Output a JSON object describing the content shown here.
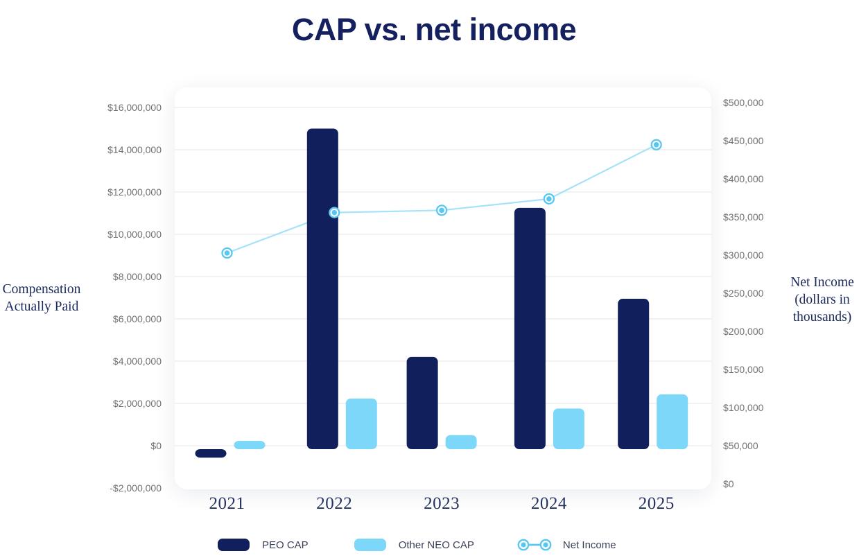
{
  "title": "CAP vs. net income",
  "left_axis_title": {
    "line1": "Compensation",
    "line2": "Actually Paid"
  },
  "right_axis_title": {
    "line1": "Net Income",
    "line2": "(dollars in",
    "line3": "thousands)"
  },
  "legend": {
    "peo_cap": "PEO CAP",
    "other_neo_cap": "Other NEO CAP",
    "net_income": "Net Income"
  },
  "colors": {
    "navy": "#111f5c",
    "light_blue": "#7cd7f9",
    "line_blue": "#a6e2fa",
    "marker_blue": "#58c8f2",
    "gridline": "#e9e9e9",
    "tick_text": "#6e7072",
    "title_navy": "#15205f",
    "serif_navy": "#1b2a5c",
    "year_navy": "#24325f",
    "legend_text": "#3b4159"
  },
  "chart_data": {
    "type": "bar",
    "title": "CAP vs. net income",
    "categories": [
      "2021",
      "2022",
      "2023",
      "2024",
      "2025"
    ],
    "series": [
      {
        "name": "PEO CAP",
        "type": "bar",
        "axis": "left",
        "values": [
          -400000,
          15000000,
          4200000,
          11250000,
          6950000
        ]
      },
      {
        "name": "Other NEO CAP",
        "type": "bar",
        "axis": "left",
        "values": [
          230000,
          2230000,
          500000,
          1760000,
          2430000
        ]
      },
      {
        "name": "Net Income",
        "type": "line",
        "axis": "right",
        "values": [
          303000,
          356000,
          359000,
          374000,
          445000
        ]
      }
    ],
    "left_axis": {
      "label": "Compensation Actually Paid",
      "min": -2000000,
      "max": 16000000,
      "step": 2000000,
      "tick_labels": [
        "$16,000,000",
        "$14,000,000",
        "$12,000,000",
        "$10,000,000",
        "$8,000,000",
        "$6,000,000",
        "$4,000,000",
        "$2,000,000",
        "$0",
        "-$2,000,000"
      ]
    },
    "right_axis": {
      "label": "Net Income (dollars in thousands)",
      "min": 0,
      "max": 500000,
      "step": 50000,
      "tick_labels": [
        "$500,000",
        "$450,000",
        "$400,000",
        "$350,000",
        "$300,000",
        "$250,000",
        "$200,000",
        "$150,000",
        "$100,000",
        "$50,000",
        "$0"
      ]
    },
    "legend_position": "bottom",
    "grid": true
  }
}
